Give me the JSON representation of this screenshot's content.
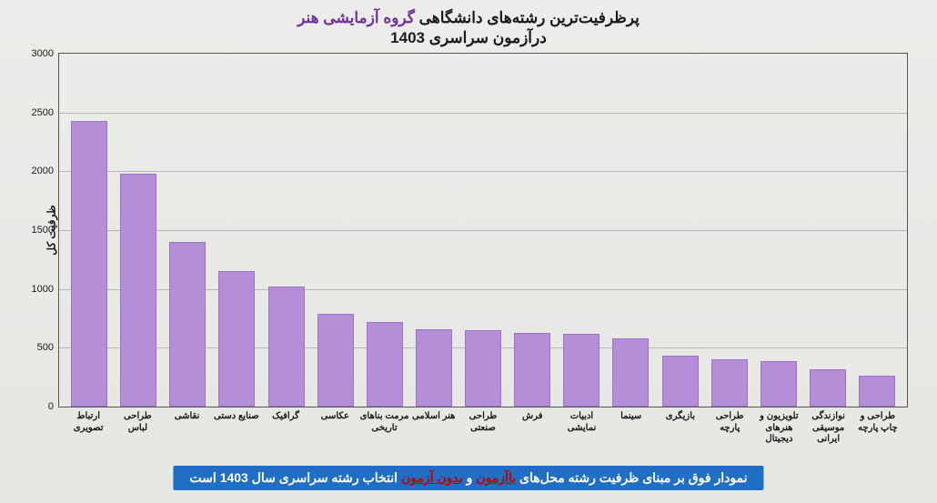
{
  "chart": {
    "type": "bar",
    "title_prefix": "پرظرفیت‌ترین رشته‌های دانشگاهی ",
    "title_accent": "گروه آزمایشی هنر",
    "subtitle": "درآزمون سراسری 1403",
    "ylabel": "ظرفیت کل",
    "ylim_max": 3000,
    "ytick_step": 500,
    "yticks": [
      0,
      500,
      1000,
      1500,
      2000,
      2500,
      3000
    ],
    "bar_color": "#b48fd8",
    "bar_border": "#9b73c7",
    "grid_color": "#b8b8b8",
    "background": "#ecedea",
    "axis_color": "#555555",
    "text_color": "#1a1a1a",
    "accent_color": "#7030a0",
    "bar_width": 0.74,
    "title_fontsize": 17,
    "label_fontsize": 10,
    "data": [
      {
        "label": "ارتباط تصویری",
        "value": 2430
      },
      {
        "label": "طراحی لباس",
        "value": 1980
      },
      {
        "label": "نقاشی",
        "value": 1400
      },
      {
        "label": "صنایع دستی",
        "value": 1150
      },
      {
        "label": "گرافیک",
        "value": 1020
      },
      {
        "label": "عکاسی",
        "value": 790
      },
      {
        "label": "مرمت بناهای تاریخی",
        "value": 720
      },
      {
        "label": "هنر اسلامی",
        "value": 660
      },
      {
        "label": "طراحی صنعتی",
        "value": 650
      },
      {
        "label": "فرش",
        "value": 630
      },
      {
        "label": "ادبیات نمایشی",
        "value": 620
      },
      {
        "label": "سینما",
        "value": 580
      },
      {
        "label": "بازیگری",
        "value": 430
      },
      {
        "label": "طراحی پارچه",
        "value": 400
      },
      {
        "label": "تلویزیون و هنرهای دیجیتال",
        "value": 390
      },
      {
        "label": "نوازندگی موسیقی ایرانی",
        "value": 320
      },
      {
        "label": "طراحی و چاپ پارچه",
        "value": 260
      }
    ]
  },
  "footer": {
    "background": "#1f6fc4",
    "text_color": "#ffffff",
    "red_color": "#c00000",
    "fontsize": 14,
    "part1": "نمودار فوق بر مبنای ظرفیت رشته محل‌های ",
    "red1": "باآزمون",
    "part2": " و ",
    "red2": "بدون آزمون",
    "part3": " انتخاب رشته سراسری سال 1403 است"
  }
}
